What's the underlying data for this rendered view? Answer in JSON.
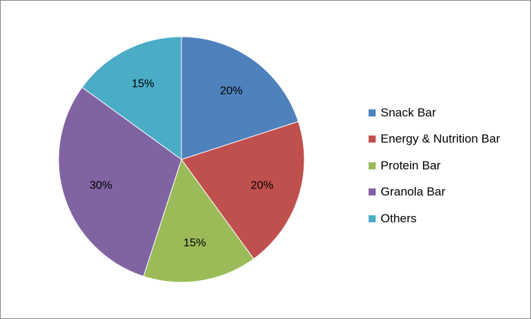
{
  "chart_data": {
    "type": "pie",
    "categories": [
      "Snack Bar",
      "Energy & Nutrition Bar",
      "Protein Bar",
      "Granola Bar",
      "Others"
    ],
    "values": [
      20,
      20,
      15,
      30,
      15
    ],
    "labels": [
      "20%",
      "20%",
      "15%",
      "30%",
      "15%"
    ],
    "colors": [
      "#4f81bd",
      "#c0504d",
      "#9bbb59",
      "#8064a2",
      "#4bacc6"
    ],
    "legend_position": "right",
    "start_angle": "12 o'clock, clockwise"
  },
  "legend": {
    "items": [
      {
        "label": "Snack Bar",
        "color": "#4f81bd"
      },
      {
        "label": "Energy & Nutrition Bar",
        "color": "#c0504d"
      },
      {
        "label": "Protein Bar",
        "color": "#9bbb59"
      },
      {
        "label": "Granola Bar",
        "color": "#8064a2"
      },
      {
        "label": "Others",
        "color": "#4bacc6"
      }
    ]
  }
}
